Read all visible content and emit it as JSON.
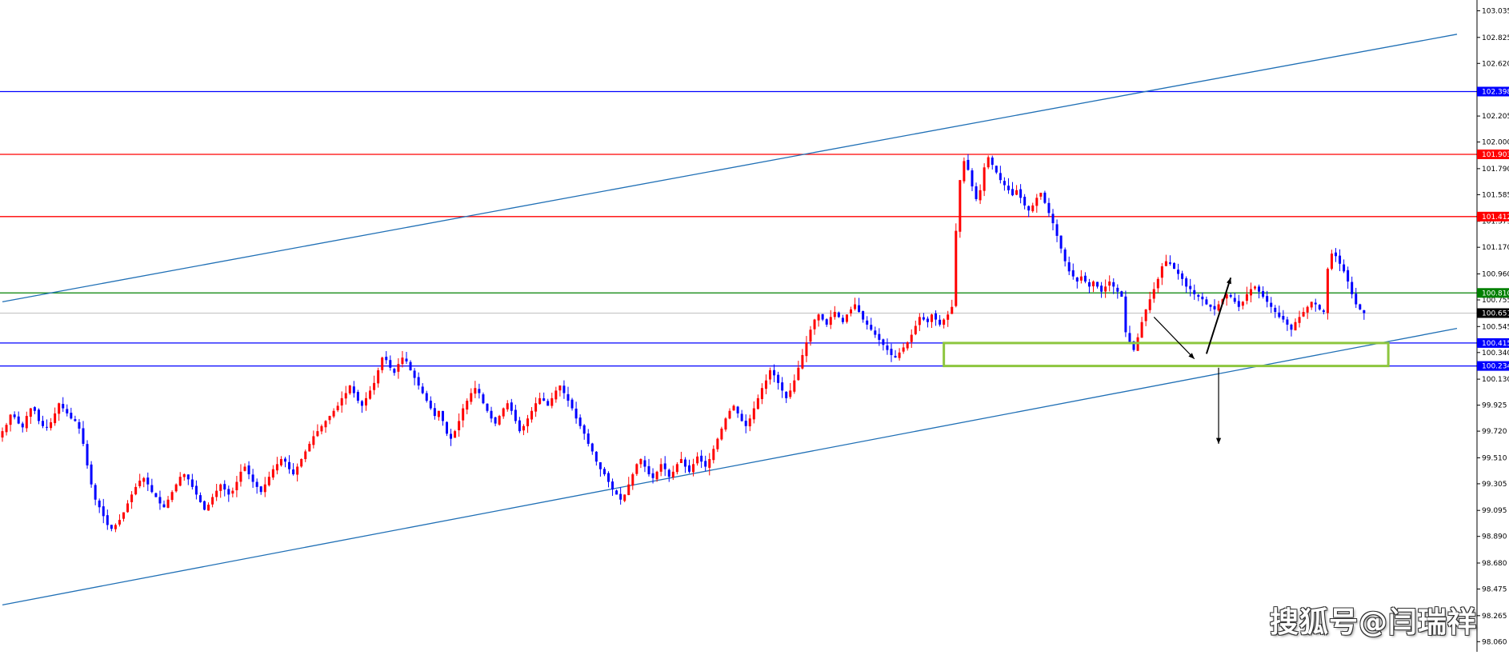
{
  "chart_data": {
    "type": "candlestick",
    "y_axis": {
      "range": [
        97.98,
        103.12
      ],
      "ticks": [
        "103.035",
        "102.825",
        "102.620",
        "102.410",
        "102.205",
        "102.000",
        "101.790",
        "101.585",
        "101.375",
        "101.170",
        "100.960",
        "100.755",
        "100.545",
        "100.340",
        "100.130",
        "99.925",
        "99.720",
        "99.510",
        "99.305",
        "99.095",
        "98.890",
        "98.680",
        "98.475",
        "98.265",
        "98.060"
      ]
    },
    "horizontal_levels": [
      {
        "price": 102.398,
        "label": "102.398",
        "color": "#0000ff"
      },
      {
        "price": 101.903,
        "label": "101.903",
        "color": "#ff0000"
      },
      {
        "price": 101.412,
        "label": "101.412",
        "color": "#ff0000"
      },
      {
        "price": 100.81,
        "label": "100.810",
        "color": "#008000"
      },
      {
        "price": 100.415,
        "label": "100.415",
        "color": "#0000ff"
      },
      {
        "price": 100.234,
        "label": "100.234",
        "color": "#0000ff"
      }
    ],
    "current_price": {
      "price": 100.651,
      "label": "100.651",
      "color": "#000000"
    },
    "trend_channel": {
      "upper": [
        {
          "bar": 0,
          "price": 100.74
        },
        {
          "bar": 360,
          "price": 102.85
        }
      ],
      "lower": [
        {
          "bar": 0,
          "price": 98.35
        },
        {
          "bar": 360,
          "price": 100.53
        }
      ]
    },
    "support_zone": {
      "bar_start": 233,
      "bar_end": 343,
      "top": 100.415,
      "bottom": 100.234,
      "color": "#8dc63f"
    },
    "projection_arrows": [
      {
        "from": {
          "bar": 285,
          "price": 100.62
        },
        "to": {
          "bar": 295,
          "price": 100.29
        },
        "color": "#000000"
      },
      {
        "from": {
          "bar": 298,
          "price": 100.33
        },
        "to": {
          "bar": 304,
          "price": 100.93
        },
        "color": "#000000"
      },
      {
        "from": {
          "bar": 301,
          "price": 100.22
        },
        "to": {
          "bar": 301,
          "price": 99.62
        },
        "color": "#000000"
      }
    ],
    "series": [
      {
        "name": "up-candles",
        "color": "#ff0000"
      },
      {
        "name": "down-candles",
        "color": "#0000ff"
      }
    ],
    "candles_closes": [
      99.72,
      99.77,
      99.85,
      99.83,
      99.78,
      99.75,
      99.84,
      99.9,
      99.88,
      99.8,
      99.76,
      99.75,
      99.79,
      99.86,
      99.94,
      99.9,
      99.86,
      99.82,
      99.8,
      99.74,
      99.62,
      99.45,
      99.3,
      99.18,
      99.12,
      99.05,
      98.98,
      98.95,
      98.98,
      99.02,
      99.08,
      99.15,
      99.22,
      99.28,
      99.33,
      99.35,
      99.3,
      99.24,
      99.2,
      99.15,
      99.12,
      99.18,
      99.24,
      99.3,
      99.36,
      99.38,
      99.34,
      99.28,
      99.22,
      99.16,
      99.1,
      99.14,
      99.2,
      99.25,
      99.3,
      99.26,
      99.22,
      99.25,
      99.32,
      99.4,
      99.44,
      99.38,
      99.32,
      99.28,
      99.24,
      99.3,
      99.36,
      99.42,
      99.46,
      99.5,
      99.48,
      99.42,
      99.38,
      99.44,
      99.5,
      99.56,
      99.62,
      99.68,
      99.72,
      99.76,
      99.8,
      99.84,
      99.88,
      99.92,
      99.98,
      100.02,
      100.08,
      100.02,
      99.96,
      99.92,
      99.98,
      100.04,
      100.1,
      100.2,
      100.3,
      100.28,
      100.22,
      100.18,
      100.25,
      100.3,
      100.27,
      100.2,
      100.14,
      100.08,
      100.02,
      99.96,
      99.9,
      99.84,
      99.88,
      99.8,
      99.7,
      99.66,
      99.72,
      99.8,
      99.9,
      99.96,
      100.02,
      100.06,
      100.02,
      99.94,
      99.88,
      99.82,
      99.78,
      99.84,
      99.9,
      99.94,
      99.88,
      99.8,
      99.72,
      99.76,
      99.82,
      99.88,
      99.94,
      99.98,
      99.96,
      99.92,
      99.98,
      100.04,
      100.08,
      100.02,
      99.96,
      99.9,
      99.82,
      99.76,
      99.7,
      99.62,
      99.56,
      99.48,
      99.42,
      99.38,
      99.32,
      99.26,
      99.22,
      99.18,
      99.22,
      99.3,
      99.38,
      99.46,
      99.5,
      99.44,
      99.38,
      99.35,
      99.4,
      99.46,
      99.42,
      99.36,
      99.4,
      99.46,
      99.5,
      99.44,
      99.4,
      99.46,
      99.52,
      99.48,
      99.44,
      99.5,
      99.58,
      99.66,
      99.74,
      99.82,
      99.88,
      99.92,
      99.86,
      99.8,
      99.76,
      99.82,
      99.9,
      99.98,
      100.06,
      100.12,
      100.2,
      100.16,
      100.1,
      100.04,
      99.98,
      100.04,
      100.12,
      100.22,
      100.32,
      100.42,
      100.52,
      100.6,
      100.64,
      100.6,
      100.56,
      100.62,
      100.66,
      100.62,
      100.58,
      100.64,
      100.68,
      100.72,
      100.66,
      100.6,
      100.56,
      100.52,
      100.48,
      100.44,
      100.4,
      100.36,
      100.32,
      100.3,
      100.34,
      100.38,
      100.42,
      100.48,
      100.55,
      100.62,
      100.6,
      100.58,
      100.64,
      100.6,
      100.56,
      100.6,
      100.64,
      100.7,
      101.3,
      101.7,
      101.85,
      101.78,
      101.65,
      101.55,
      101.62,
      101.8,
      101.88,
      101.82,
      101.76,
      101.7,
      101.66,
      101.62,
      101.58,
      101.62,
      101.56,
      101.5,
      101.46,
      101.5,
      101.56,
      101.6,
      101.52,
      101.44,
      101.36,
      101.26,
      101.16,
      101.06,
      100.98,
      100.94,
      100.9,
      100.94,
      100.9,
      100.86,
      100.9,
      100.86,
      100.82,
      100.86,
      100.9,
      100.86,
      100.82,
      100.78,
      100.5,
      100.42,
      100.36,
      100.46,
      100.58,
      100.68,
      100.76,
      100.84,
      100.92,
      101.02,
      101.06,
      101.04,
      101.0,
      100.96,
      100.92,
      100.86,
      100.84,
      100.8,
      100.78,
      100.76,
      100.72,
      100.7,
      100.68,
      100.72,
      100.76,
      100.8,
      100.78,
      100.74,
      100.7,
      100.74,
      100.8,
      100.84,
      100.86,
      100.82,
      100.78,
      100.74,
      100.7,
      100.66,
      100.62,
      100.6,
      100.56,
      100.52,
      100.58,
      100.62,
      100.66,
      100.7,
      100.74,
      100.72,
      100.68,
      100.66,
      101.0,
      101.12,
      101.1,
      101.04,
      100.98,
      100.9,
      100.8,
      100.72,
      100.68,
      100.651
    ]
  },
  "watermark": "搜狐号@闫瑞祥"
}
